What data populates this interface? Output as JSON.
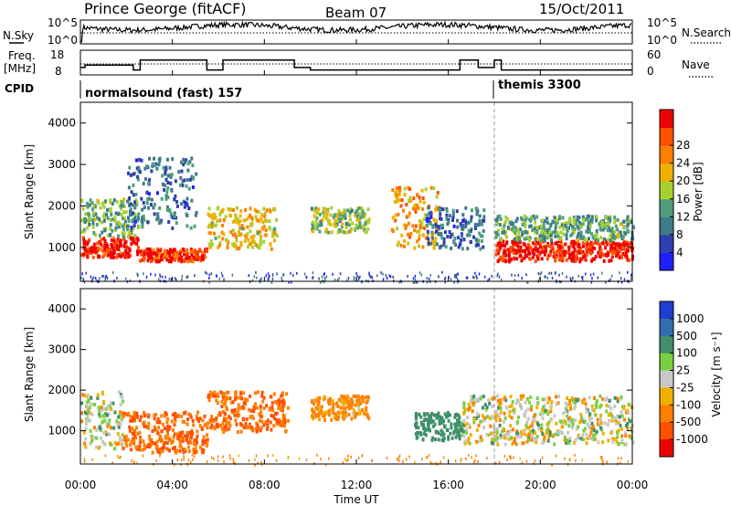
{
  "header": {
    "station": "Prince George (fitACF)",
    "beam": "Beam 07",
    "date": "15/Oct/2011"
  },
  "noise_panel": {
    "left_label": "N.Sky",
    "right_label": "N.Search",
    "left_ticks": [
      "10^5",
      "10^0"
    ],
    "right_ticks": [
      "10^5",
      "10^0"
    ]
  },
  "freq_panel": {
    "left_label_1": "Freq.",
    "left_label_2": "[MHz]",
    "right_label": "Nave",
    "left_ticks": [
      "18",
      "8"
    ],
    "right_ticks": [
      "60",
      "0"
    ]
  },
  "cpid": {
    "label": "CPID",
    "programs": [
      {
        "name": "normalsound (fast) 157",
        "start": "00:00"
      },
      {
        "name": "themis 3300",
        "start": "18:00"
      }
    ]
  },
  "power_panel": {
    "ylabel": "Slant Range [km]",
    "yticks": [
      "1000",
      "2000",
      "3000",
      "4000"
    ],
    "colorbar_label": "Power [dB]",
    "colorbar_ticks": [
      "4",
      "8",
      "12",
      "16",
      "20",
      "24",
      "28"
    ],
    "colors": [
      "#1f1fff",
      "#2f3fb0",
      "#3f7a8a",
      "#4fa07a",
      "#a8d030",
      "#f0b000",
      "#ff8000",
      "#ff5000",
      "#f00000"
    ]
  },
  "velocity_panel": {
    "ylabel": "Slant Range [km]",
    "yticks": [
      "1000",
      "2000",
      "3000",
      "4000"
    ],
    "colorbar_label": "Velocity [m s⁻¹]",
    "colorbar_ticks": [
      "1000",
      "500",
      "100",
      "25",
      "-25",
      "-100",
      "-500",
      "-1000"
    ],
    "colors": [
      "#1f3fd0",
      "#2f6fb0",
      "#3f8f6a",
      "#7ad040",
      "#c8c8c8",
      "#f0b000",
      "#ff8000",
      "#ff5000",
      "#f00000"
    ]
  },
  "xaxis": {
    "label": "Time UT",
    "ticks": [
      "00:00",
      "04:00",
      "08:00",
      "12:00",
      "16:00",
      "20:00",
      "00:00"
    ]
  },
  "chart_data": {
    "type": "heatmap",
    "title": "Prince George (fitACF)",
    "subtitle": "Beam 07 15/Oct/2011",
    "xlabel": "Time UT",
    "ylabel": "Slant Range [km]",
    "xlim": [
      0,
      24
    ],
    "ylim": [
      180,
      4500
    ],
    "frequency_mhz": {
      "hours": [
        0,
        0.2,
        2.3,
        2.6,
        5.5,
        6.2,
        9.3,
        10,
        16.5,
        17.3,
        18,
        18.3,
        24
      ],
      "values": [
        11,
        12,
        10,
        14,
        10,
        14,
        11,
        10,
        14,
        11,
        14,
        10,
        10
      ]
    },
    "scatter_bands_power": [
      {
        "t0": 0.0,
        "t1": 2.5,
        "r0": 800,
        "r1": 1300,
        "power": 28
      },
      {
        "t0": 0.0,
        "t1": 2.5,
        "r0": 1300,
        "r1": 2200,
        "power": 12
      },
      {
        "t0": 2.5,
        "t1": 5.5,
        "r0": 700,
        "r1": 1000,
        "power": 26
      },
      {
        "t0": 2.0,
        "t1": 5.0,
        "r0": 1500,
        "r1": 3200,
        "power": 8
      },
      {
        "t0": 5.5,
        "t1": 8.5,
        "r0": 1000,
        "r1": 2000,
        "power": 18
      },
      {
        "t0": 10.0,
        "t1": 12.5,
        "r0": 1400,
        "r1": 2000,
        "power": 14
      },
      {
        "t0": 13.5,
        "t1": 15.5,
        "r0": 1000,
        "r1": 2500,
        "power": 20
      },
      {
        "t0": 15.0,
        "t1": 17.5,
        "r0": 1000,
        "r1": 2000,
        "power": 8
      },
      {
        "t0": 18.0,
        "t1": 24.0,
        "r0": 700,
        "r1": 1200,
        "power": 28
      },
      {
        "t0": 18.0,
        "t1": 24.0,
        "r0": 1200,
        "r1": 1800,
        "power": 12
      }
    ],
    "scatter_bands_velocity": [
      {
        "t0": 0.0,
        "t1": 1.8,
        "r0": 600,
        "r1": 2000,
        "velocity": 0
      },
      {
        "t0": 1.8,
        "t1": 5.5,
        "r0": 500,
        "r1": 1500,
        "velocity": -300
      },
      {
        "t0": 5.5,
        "t1": 9.0,
        "r0": 1000,
        "r1": 2000,
        "velocity": -300
      },
      {
        "t0": 10.0,
        "t1": 12.5,
        "r0": 1300,
        "r1": 1900,
        "velocity": -100
      },
      {
        "t0": 14.5,
        "t1": 16.5,
        "r0": 800,
        "r1": 1500,
        "velocity": 200
      },
      {
        "t0": 16.5,
        "t1": 24.0,
        "r0": 700,
        "r1": 1900,
        "velocity": 0
      }
    ]
  }
}
